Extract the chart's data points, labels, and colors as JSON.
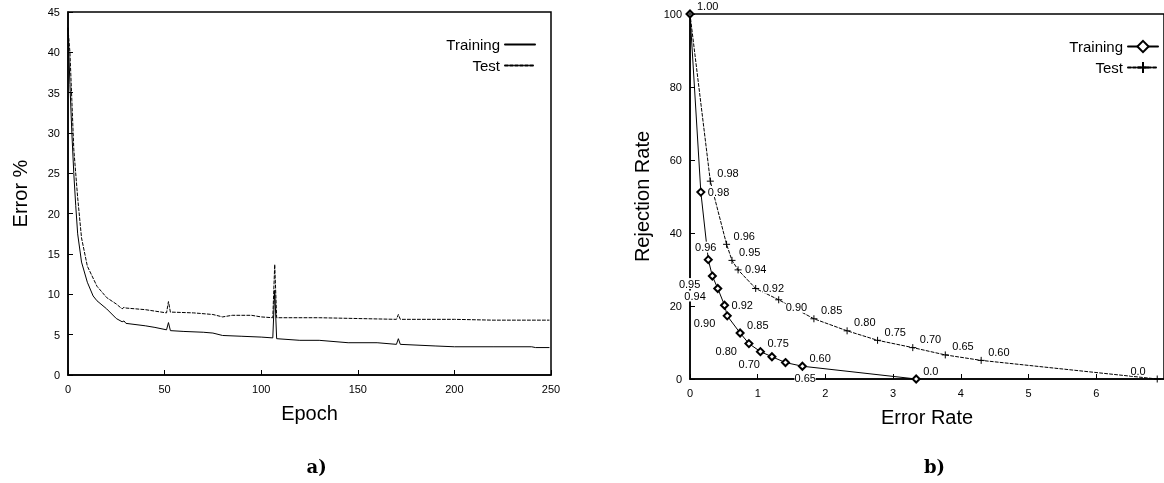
{
  "chart_data": [
    {
      "type": "line",
      "xlabel": "Epoch",
      "ylabel": "Error %",
      "xlim": [
        0,
        250
      ],
      "xticks": [
        0,
        50,
        100,
        150,
        200,
        250
      ],
      "ylim": [
        0,
        45
      ],
      "yticks": [
        0,
        5,
        10,
        15,
        20,
        25,
        30,
        35,
        40,
        45
      ],
      "grid": false,
      "legend": "top right",
      "marker": "none",
      "annotations": [
        "a)"
      ],
      "series": [
        {
          "name": "Training",
          "color": "#000000",
          "line_style": "solid",
          "x": [
            0,
            1,
            2,
            3,
            4,
            5,
            7,
            10,
            13,
            15,
            20,
            25,
            28,
            29,
            30,
            40,
            45,
            51,
            52,
            53,
            60,
            70,
            75,
            80,
            90,
            100,
            106,
            107,
            108,
            120,
            130,
            145,
            160,
            170,
            171,
            172,
            190,
            200,
            220,
            240,
            242,
            249
          ],
          "values": [
            43,
            36,
            30,
            25,
            21,
            17.5,
            14,
            11.5,
            9.8,
            9.2,
            8.2,
            7,
            6.6,
            6.7,
            6.4,
            6.1,
            5.9,
            5.6,
            6.5,
            5.5,
            5.4,
            5.3,
            5.2,
            4.9,
            4.8,
            4.7,
            4.6,
            10.5,
            4.5,
            4.3,
            4.3,
            4.0,
            4.0,
            3.8,
            4.5,
            3.8,
            3.6,
            3.5,
            3.5,
            3.5,
            3.4,
            3.4
          ]
        },
        {
          "name": "Test",
          "color": "#000000",
          "line_style": "dashed",
          "x": [
            0,
            1,
            2,
            3,
            5,
            7,
            10,
            15,
            20,
            25,
            28,
            29,
            30,
            40,
            51,
            52,
            53,
            65,
            75,
            80,
            85,
            95,
            100,
            106,
            107,
            108,
            130,
            150,
            170,
            171,
            172,
            200,
            220,
            249
          ],
          "values": [
            43,
            40,
            34,
            28,
            22,
            17,
            13.5,
            11,
            9.6,
            8.8,
            8.2,
            8.4,
            8.3,
            8.1,
            7.7,
            9.1,
            7.8,
            7.7,
            7.5,
            7.2,
            7.4,
            7.4,
            7.2,
            7.1,
            13.7,
            7.1,
            7.1,
            7.0,
            6.9,
            7.5,
            6.9,
            6.9,
            6.8,
            6.8
          ]
        }
      ]
    },
    {
      "type": "line",
      "xlabel": "Error Rate",
      "ylabel": "Rejection Rate",
      "xlim": [
        0,
        7
      ],
      "xticks": [
        0,
        1,
        2,
        3,
        4,
        5,
        6
      ],
      "ylim": [
        0,
        100
      ],
      "yticks": [
        0,
        20,
        40,
        60,
        80,
        100
      ],
      "grid": false,
      "legend": "top right",
      "annotations": [
        "b)",
        {
          "text": "1.00",
          "x": 0,
          "y": 100
        },
        {
          "text": "0.98",
          "x": 0.16,
          "y": 51.2
        },
        {
          "text": "0.96",
          "x": 0.27,
          "y": 32.7
        },
        {
          "text": "0.95",
          "x": 0.33,
          "y": 28.2
        },
        {
          "text": "0.94",
          "x": 0.41,
          "y": 24.8
        },
        {
          "text": "0.92",
          "x": 0.51,
          "y": 20.2
        },
        {
          "text": "0.90",
          "x": 0.55,
          "y": 17.3
        },
        {
          "text": "0.85",
          "x": 0.74,
          "y": 12.6
        },
        {
          "text": "0.80",
          "x": 0.87,
          "y": 9.7
        },
        {
          "text": "0.75",
          "x": 1.04,
          "y": 7.5
        },
        {
          "text": "0.70",
          "x": 1.21,
          "y": 6.1
        },
        {
          "text": "0.65",
          "x": 1.41,
          "y": 4.5
        },
        {
          "text": "0.60",
          "x": 1.66,
          "y": 3.5
        },
        {
          "text": "0.0",
          "x": 3.34,
          "y": 0
        },
        {
          "text": "0.98",
          "x": 0.3,
          "y": 54.2
        },
        {
          "text": "0.96",
          "x": 0.54,
          "y": 36.9
        },
        {
          "text": "0.95",
          "x": 0.62,
          "y": 32.5
        },
        {
          "text": "0.94",
          "x": 0.71,
          "y": 29.9
        },
        {
          "text": "0.92",
          "x": 0.97,
          "y": 24.8
        },
        {
          "text": "0.90",
          "x": 1.31,
          "y": 21.7
        },
        {
          "text": "0.85",
          "x": 1.83,
          "y": 16.5
        },
        {
          "text": "0.80",
          "x": 2.32,
          "y": 13.2
        },
        {
          "text": "0.75",
          "x": 2.77,
          "y": 10.6
        },
        {
          "text": "0.70",
          "x": 3.29,
          "y": 8.6
        },
        {
          "text": "0.65",
          "x": 3.77,
          "y": 6.6
        },
        {
          "text": "0.60",
          "x": 4.3,
          "y": 5.1
        },
        {
          "text": "0.0",
          "x": 6.9,
          "y": 0
        }
      ],
      "series": [
        {
          "name": "Training",
          "color": "#000000",
          "line_style": "solid",
          "marker": "diamond",
          "x": [
            0,
            0.16,
            0.27,
            0.33,
            0.41,
            0.51,
            0.55,
            0.74,
            0.87,
            1.04,
            1.21,
            1.41,
            1.66,
            3.34
          ],
          "values": [
            100,
            51.2,
            32.7,
            28.2,
            24.8,
            20.2,
            17.3,
            12.6,
            9.7,
            7.5,
            6.1,
            4.5,
            3.5,
            0
          ]
        },
        {
          "name": "Test",
          "color": "#000000",
          "line_style": "dashed",
          "marker": "cross",
          "x": [
            0,
            0.3,
            0.54,
            0.62,
            0.71,
            0.97,
            1.31,
            1.83,
            2.32,
            2.77,
            3.29,
            3.77,
            4.3,
            6.9
          ],
          "values": [
            100,
            54.2,
            36.9,
            32.5,
            29.9,
            24.8,
            21.7,
            16.5,
            13.2,
            10.6,
            8.6,
            6.6,
            5.1,
            0
          ]
        }
      ]
    }
  ]
}
